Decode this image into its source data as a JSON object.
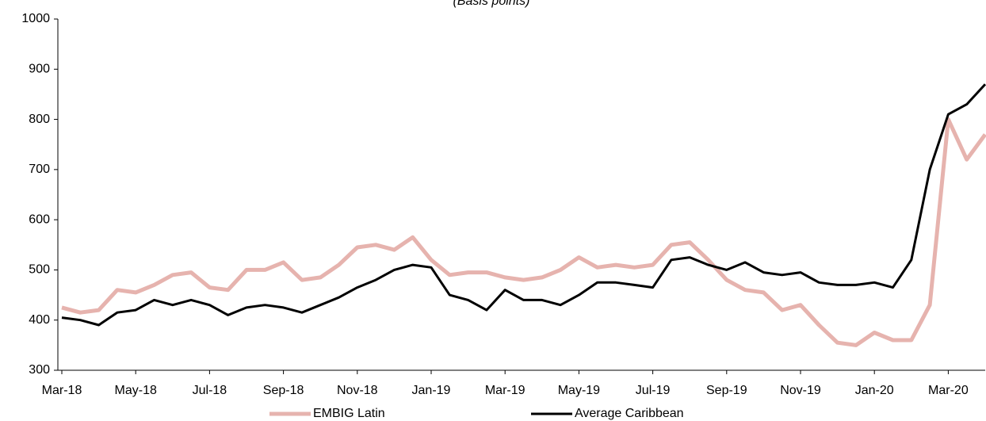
{
  "chart_data": {
    "type": "line",
    "title": "(Basis points)",
    "categories": [
      "Mar-18",
      null,
      null,
      null,
      "May-18",
      null,
      null,
      null,
      "Jul-18",
      null,
      null,
      null,
      "Sep-18",
      null,
      null,
      null,
      "Nov-18",
      null,
      null,
      null,
      "Jan-19",
      null,
      null,
      null,
      "Mar-19",
      null,
      null,
      null,
      "May-19",
      null,
      null,
      null,
      "Jul-19",
      null,
      null,
      null,
      "Sep-19",
      null,
      null,
      null,
      "Nov-19",
      null,
      null,
      null,
      "Jan-20",
      null,
      null,
      null,
      "Mar-20",
      null,
      null
    ],
    "series": [
      {
        "name": "EMBIG Latin",
        "color": "#e6b3ae",
        "values": [
          425,
          415,
          420,
          460,
          455,
          470,
          490,
          495,
          465,
          460,
          500,
          500,
          515,
          480,
          485,
          510,
          545,
          550,
          540,
          565,
          520,
          490,
          495,
          495,
          485,
          480,
          485,
          500,
          525,
          505,
          510,
          505,
          510,
          550,
          555,
          520,
          480,
          460,
          455,
          420,
          430,
          390,
          355,
          350,
          375,
          360,
          360,
          430,
          800,
          720,
          770
        ]
      },
      {
        "name": "Average Caribbean",
        "color": "#000000",
        "values": [
          405,
          400,
          390,
          415,
          420,
          440,
          430,
          440,
          430,
          410,
          425,
          430,
          425,
          415,
          430,
          445,
          465,
          480,
          500,
          510,
          505,
          450,
          440,
          420,
          460,
          440,
          440,
          430,
          450,
          475,
          475,
          470,
          465,
          520,
          525,
          510,
          500,
          515,
          495,
          490,
          495,
          475,
          470,
          470,
          475,
          465,
          520,
          700,
          810,
          830,
          870
        ]
      }
    ],
    "ylim": [
      300,
      1000
    ],
    "yticks": [
      300,
      400,
      500,
      600,
      700,
      800,
      900,
      1000
    ],
    "grid": false
  }
}
